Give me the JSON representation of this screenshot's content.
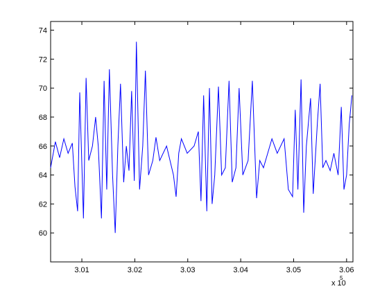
{
  "chart_data": {
    "type": "line",
    "x_multiplier": "x 10",
    "x_exponent": "5",
    "x": [
      3.0041,
      3.005,
      3.0058,
      3.0066,
      3.0074,
      3.0082,
      3.0087,
      3.0092,
      3.0096,
      3.0103,
      3.0108,
      3.0113,
      3.012,
      3.0126,
      3.0131,
      3.0137,
      3.0142,
      3.0147,
      3.0152,
      3.0158,
      3.0163,
      3.0168,
      3.0173,
      3.0179,
      3.0184,
      3.0189,
      3.0194,
      3.0199,
      3.0203,
      3.0209,
      3.0215,
      3.022,
      3.0226,
      3.0234,
      3.024,
      3.0247,
      3.026,
      3.0273,
      3.0278,
      3.0283,
      3.0288,
      3.0299,
      3.0312,
      3.032,
      3.0325,
      3.033,
      3.0336,
      3.0341,
      3.0346,
      3.0351,
      3.0358,
      3.0364,
      3.0371,
      3.0378,
      3.0384,
      3.0391,
      3.0397,
      3.0404,
      3.0414,
      3.0422,
      3.043,
      3.0436,
      3.0443,
      3.0451,
      3.0459,
      3.0469,
      3.0482,
      3.049,
      3.0498,
      3.0503,
      3.0508,
      3.0514,
      3.0519,
      3.0524,
      3.0532,
      3.0537,
      3.0545,
      3.055,
      3.0555,
      3.0561,
      3.0569,
      3.0576,
      3.0584,
      3.059,
      3.0595,
      3.06,
      3.0605,
      3.061
    ],
    "series": [
      {
        "color": "#0000ff",
        "values": [
          64.5,
          66.3,
          65.2,
          66.5,
          65.5,
          66.2,
          63.2,
          61.5,
          69.7,
          61,
          70.7,
          65,
          66,
          68,
          66,
          61,
          70.5,
          63,
          71.3,
          64,
          60,
          66,
          70.3,
          63.5,
          66,
          64.3,
          69.8,
          63.6,
          73.2,
          63,
          66,
          71.2,
          64,
          65,
          66.6,
          65,
          66,
          64,
          62.5,
          65.5,
          66.5,
          65.5,
          66,
          67,
          62.2,
          69.5,
          61.5,
          70,
          62,
          64,
          70.1,
          64,
          64.5,
          70.5,
          63.5,
          64.5,
          70,
          64,
          65,
          70.5,
          62.4,
          65,
          64.5,
          65.5,
          66.5,
          65.5,
          66.5,
          63,
          62.5,
          68.5,
          63,
          70.6,
          61.4,
          66,
          69.3,
          62.7,
          67.7,
          70.3,
          64.5,
          65,
          64.3,
          65.5,
          64,
          68.7,
          63,
          64,
          67.5,
          69.5
        ]
      }
    ],
    "xlim": [
      3.0041,
      3.0612
    ],
    "ylim": [
      58,
      74.6
    ],
    "xticks": [
      3.01,
      3.02,
      3.03,
      3.04,
      3.05,
      3.06
    ],
    "yticks": [
      60,
      62,
      64,
      66,
      68,
      70,
      72,
      74
    ],
    "grid": false
  }
}
